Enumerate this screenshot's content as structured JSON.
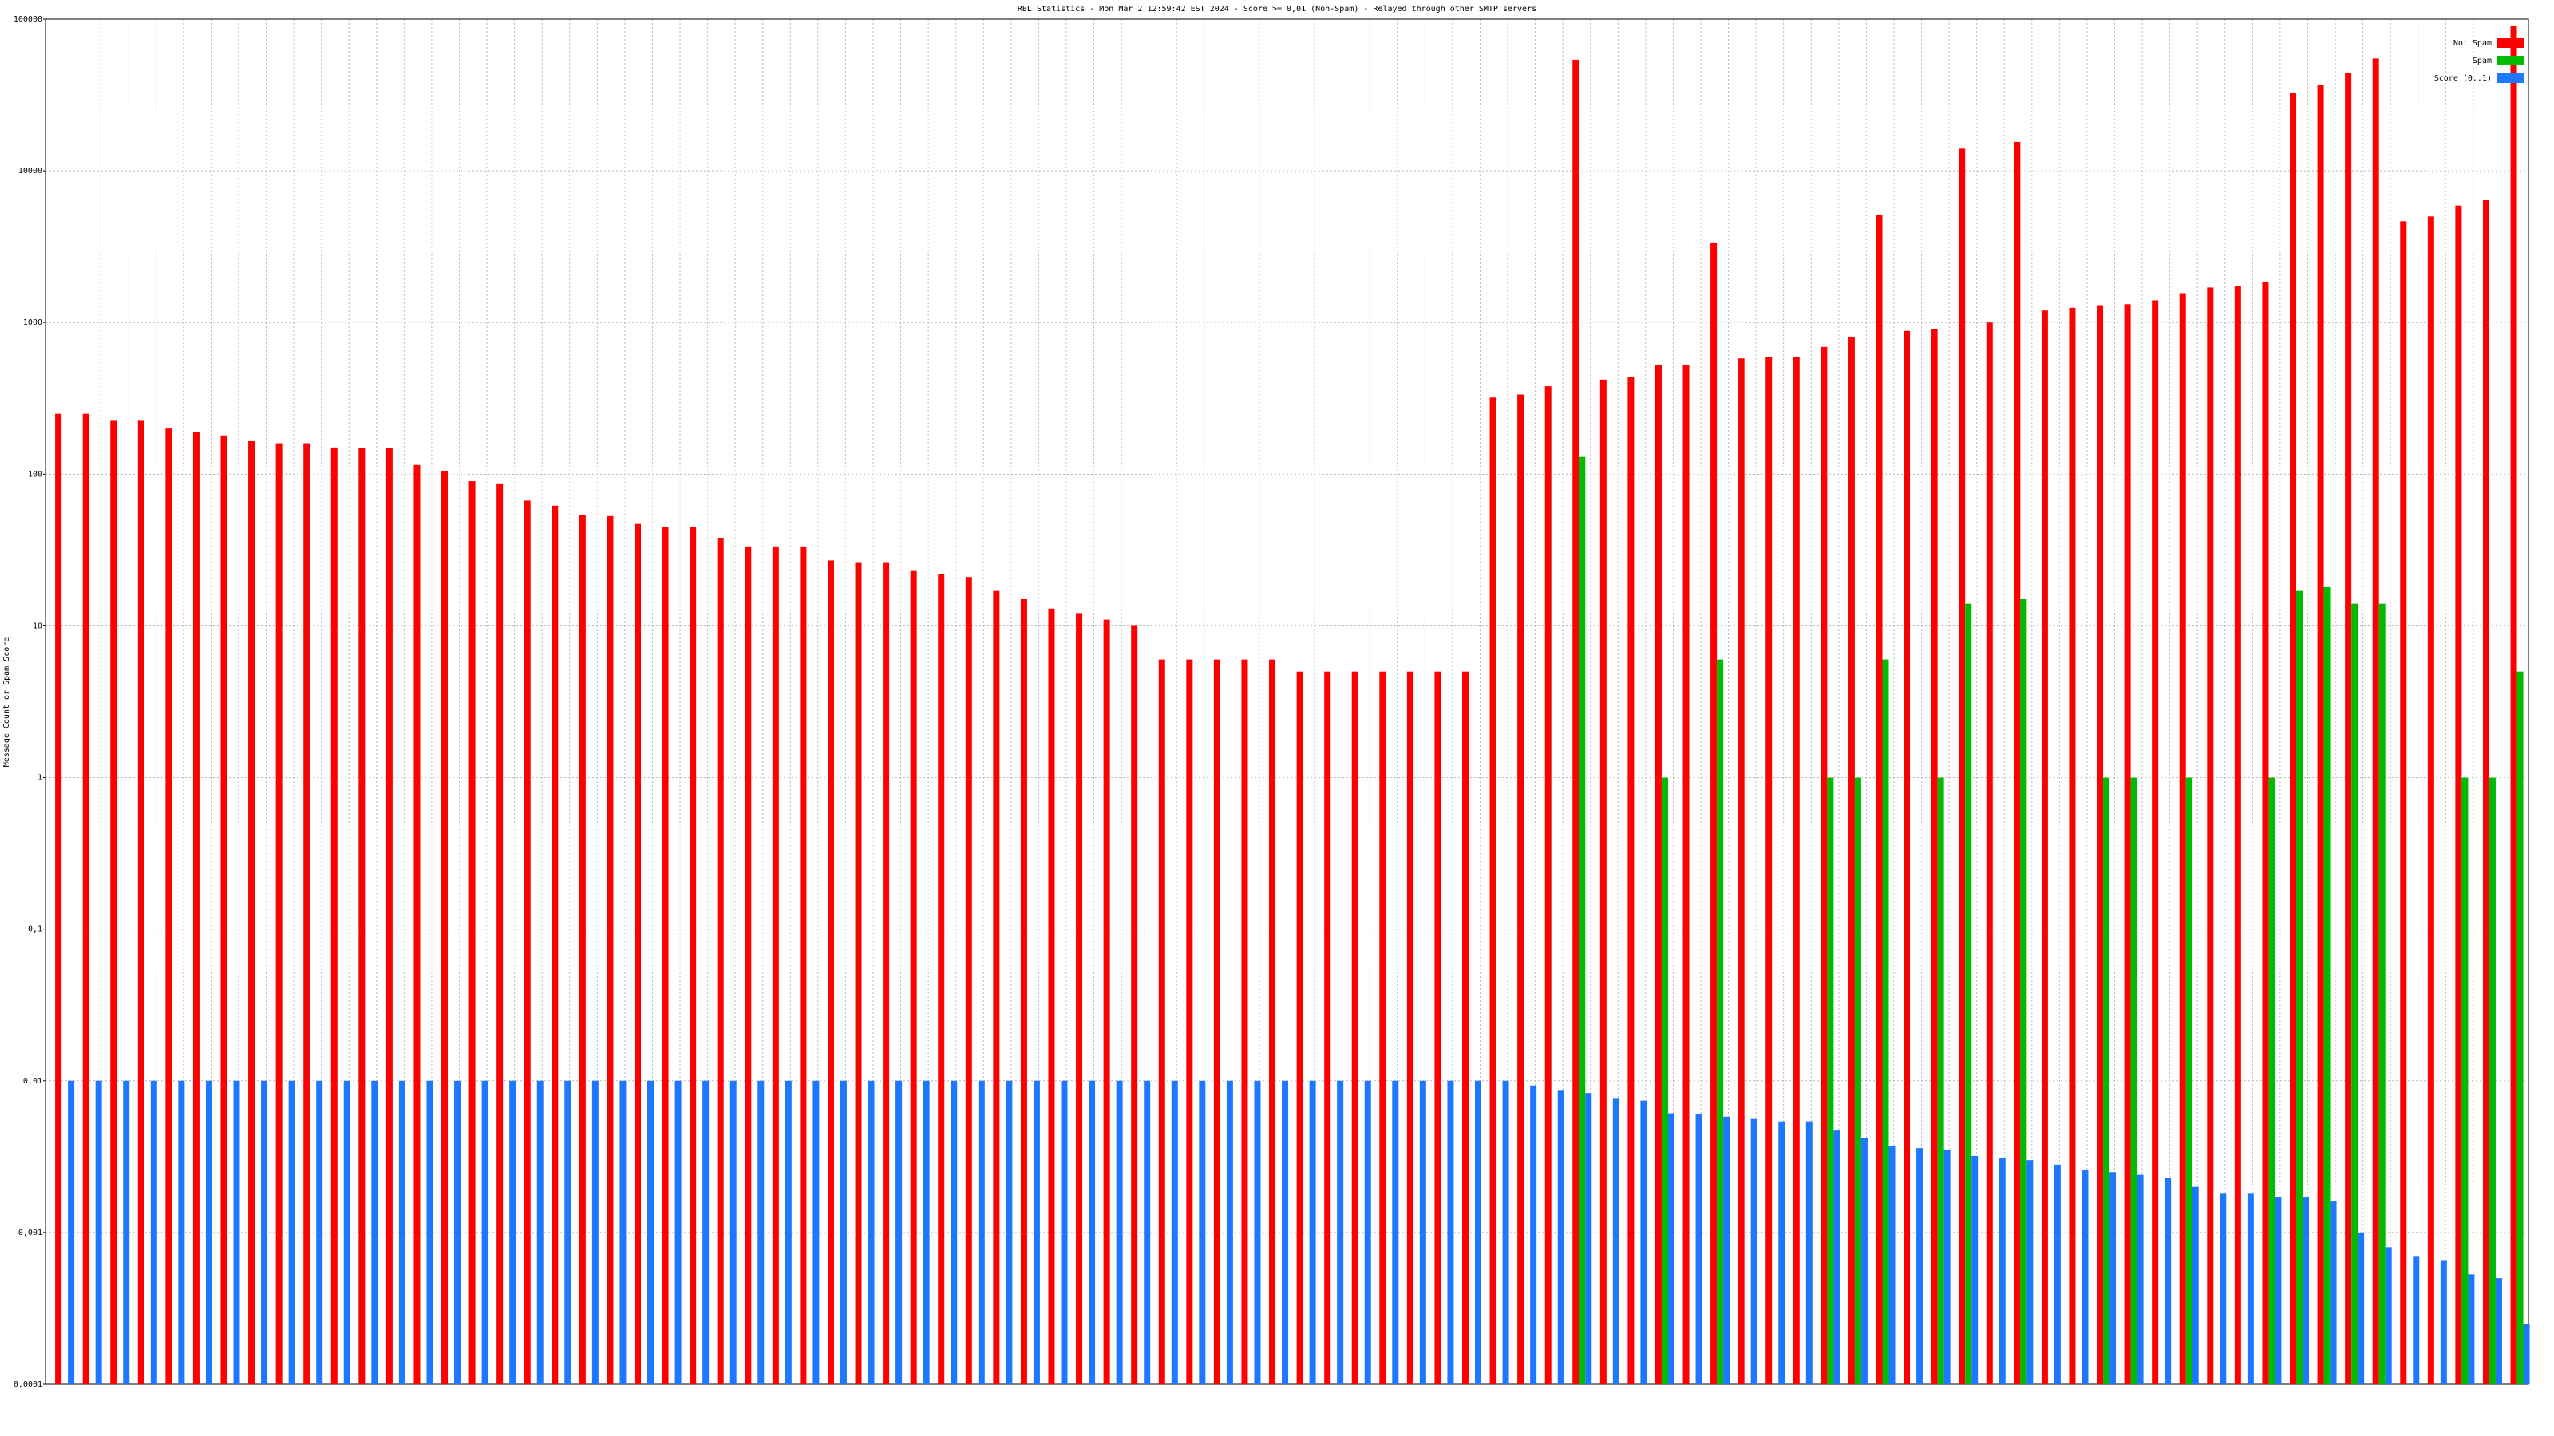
{
  "chart_data": {
    "type": "bar",
    "title": "RBL Statistics - Mon Mar  2 12:59:42 EST 2024 - Score >= 0,01 (Non-Spam) - Relayed through other SMTP servers",
    "y_label": "Message Count or Spam Score",
    "log_scale": true,
    "grid": true,
    "legend": "upper right",
    "ylim": [
      0.0001,
      100000
    ],
    "yticks": [
      {
        "value": 0.0001,
        "label": "0,0001"
      },
      {
        "value": 0.001,
        "label": "0,001"
      },
      {
        "value": 0.01,
        "label": "0,01"
      },
      {
        "value": 0.1,
        "label": "0,1"
      },
      1,
      10,
      100,
      1000,
      10000,
      100000
    ],
    "categories": [
      null,
      null,
      null,
      null,
      null,
      null,
      null,
      null,
      null,
      null,
      null,
      null,
      null,
      null,
      null,
      null,
      null,
      null,
      null,
      null,
      null,
      null,
      null,
      null,
      null,
      null,
      null,
      null,
      null,
      null,
      null,
      null,
      null,
      null,
      null,
      null,
      null,
      null,
      null,
      null,
      null,
      null,
      null,
      null,
      null,
      null,
      null,
      null,
      null,
      null,
      null,
      null,
      null,
      null,
      null,
      null,
      null,
      null,
      null,
      null,
      null,
      null,
      null,
      null,
      null,
      null,
      null,
      null,
      null,
      null,
      null,
      null,
      null,
      null,
      null,
      null,
      null,
      null,
      null,
      null,
      null,
      null,
      null,
      null,
      null,
      null,
      null,
      null,
      null,
      null
    ],
    "series": [
      {
        "name": "Not Spam",
        "color": "#ff0000",
        "values": [
          250,
          250,
          225,
          225,
          200,
          190,
          180,
          165,
          160,
          160,
          150,
          148,
          148,
          115,
          105,
          90,
          86,
          67,
          62,
          54,
          53,
          47,
          45,
          45,
          38,
          33,
          33,
          33,
          27,
          26,
          26,
          23,
          22,
          21,
          17,
          15,
          13,
          12,
          11,
          10,
          6,
          6,
          6,
          6,
          6,
          5,
          5,
          5,
          5,
          5,
          5,
          5,
          320,
          335,
          380,
          54000,
          420,
          440,
          525,
          525,
          3370,
          580,
          590,
          590,
          690,
          800,
          5100,
          880,
          900,
          14000,
          1000,
          15500,
          1200,
          1250,
          1300,
          1320,
          1400,
          1560,
          1700,
          1750,
          1850,
          32800,
          36600,
          44000,
          55000,
          4650,
          5000,
          5900,
          6400,
          90000
        ]
      },
      {
        "name": "Spam",
        "color": "#00bb00",
        "values": [
          null,
          null,
          null,
          null,
          null,
          null,
          null,
          null,
          null,
          null,
          null,
          null,
          null,
          null,
          null,
          null,
          null,
          null,
          null,
          null,
          null,
          null,
          null,
          null,
          null,
          null,
          null,
          null,
          null,
          null,
          null,
          null,
          null,
          null,
          null,
          null,
          null,
          null,
          null,
          null,
          null,
          null,
          null,
          null,
          null,
          null,
          null,
          null,
          null,
          null,
          null,
          null,
          null,
          null,
          null,
          130,
          null,
          null,
          1,
          null,
          6,
          null,
          null,
          null,
          1,
          1,
          6,
          null,
          1,
          14,
          null,
          15,
          null,
          null,
          1,
          1,
          null,
          1,
          null,
          null,
          1,
          17,
          18,
          14,
          14,
          null,
          null,
          1,
          1,
          5
        ]
      },
      {
        "name": "Score (0..1)",
        "color": "#1e78ff",
        "values": [
          0.01,
          0.01,
          0.01,
          0.01,
          0.01,
          0.01,
          0.01,
          0.01,
          0.01,
          0.01,
          0.01,
          0.01,
          0.01,
          0.01,
          0.01,
          0.01,
          0.01,
          0.01,
          0.01,
          0.01,
          0.01,
          0.01,
          0.01,
          0.01,
          0.01,
          0.01,
          0.01,
          0.01,
          0.01,
          0.01,
          0.01,
          0.01,
          0.01,
          0.01,
          0.01,
          0.01,
          0.01,
          0.01,
          0.01,
          0.01,
          0.01,
          0.01,
          0.01,
          0.01,
          0.01,
          0.01,
          0.01,
          0.01,
          0.01,
          0.01,
          0.01,
          0.01,
          0.01,
          0.0093,
          0.0087,
          0.0083,
          0.0077,
          0.0074,
          0.0061,
          0.006,
          0.0058,
          0.0056,
          0.0054,
          0.0054,
          0.0047,
          0.0042,
          0.0037,
          0.0036,
          0.0035,
          0.0032,
          0.0031,
          0.003,
          0.0028,
          0.0026,
          0.0025,
          0.0024,
          0.0023,
          0.002,
          0.0018,
          0.0018,
          0.0017,
          0.0017,
          0.0016,
          0.001,
          0.0008,
          0.0007,
          0.00065,
          0.00053,
          0.0005,
          0.00025
        ]
      }
    ]
  }
}
